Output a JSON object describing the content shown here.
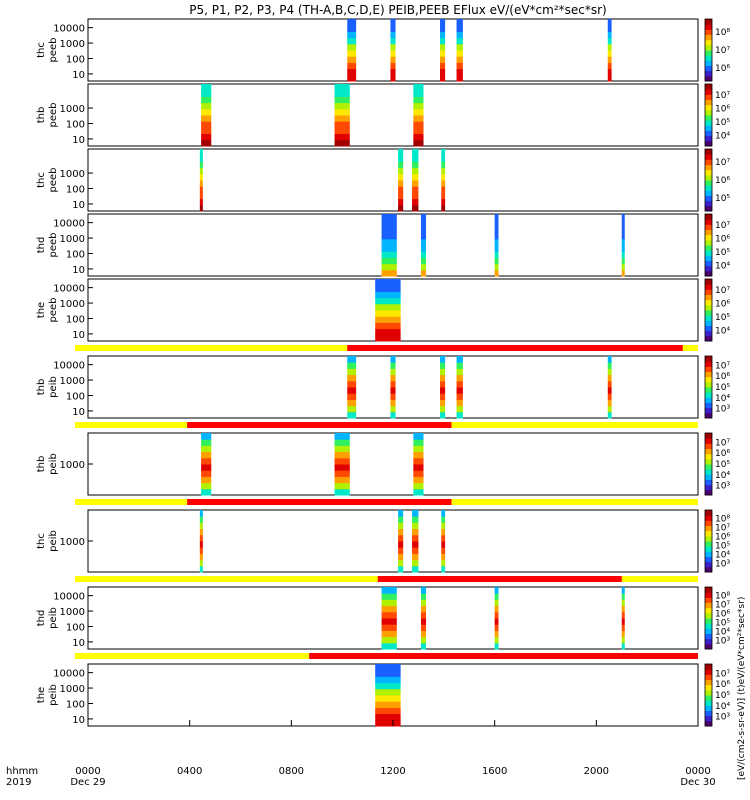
{
  "chart_data": {
    "type": "heatmap",
    "title": "P5, P1, P2, P3, P4 (TH-A,B,C,D,E) PEIB,PEEB EFlux eV/(eV*cm²*sec*sr)",
    "xlabel": "hhmm",
    "xlabel_year": "2019",
    "x_ticks": [
      "0000",
      "0400",
      "0800",
      "1200",
      "1600",
      "2000",
      "0000"
    ],
    "x_tick_hours": [
      0,
      4,
      8,
      12,
      16,
      20,
      24
    ],
    "x_date_labels": [
      "Dec 29",
      "Dec 30"
    ],
    "colorbar_label": "[eV/(cm2-s-sr-eV)] (t)eV/(eV*cm²*sec*sr)",
    "colorscale": [
      "#4b006e",
      "#3a20c8",
      "#1a60ff",
      "#00b4ff",
      "#00e8c8",
      "#30f060",
      "#b0f000",
      "#ffe800",
      "#ffa000",
      "#ff4800",
      "#e00000",
      "#a00000"
    ],
    "band_colors": {
      "yellow": "#ffff00",
      "red": "#ff0000"
    },
    "panels": [
      {
        "probe": "thc",
        "product": "peeb",
        "y_ticks": [
          "10",
          "100",
          "1000",
          "10000"
        ],
        "cb_ticks": [
          "10⁶",
          "10⁷",
          "10⁸"
        ],
        "bursts": [
          [
            10.2,
            10.55
          ],
          [
            11.9,
            12.1
          ],
          [
            13.85,
            14.05
          ],
          [
            14.5,
            14.75
          ],
          [
            20.45,
            20.6
          ]
        ],
        "profile": "hot"
      },
      {
        "probe": "thb",
        "product": "peeb",
        "y_ticks": [
          "10",
          "100",
          "1000"
        ],
        "cb_ticks": [
          "10⁴",
          "10⁵",
          "10⁶",
          "10⁷"
        ],
        "bursts": [
          [
            4.45,
            4.85
          ],
          [
            9.7,
            10.3
          ],
          [
            12.8,
            13.2
          ]
        ],
        "profile": "warm"
      },
      {
        "probe": "thc",
        "product": "peeb",
        "y_ticks": [
          "10",
          "100",
          "1000"
        ],
        "cb_ticks": [
          "10⁵",
          "10⁶",
          "10⁷"
        ],
        "bursts": [
          [
            4.4,
            4.5
          ],
          [
            12.2,
            12.4
          ],
          [
            12.75,
            13.0
          ],
          [
            13.9,
            14.05
          ]
        ],
        "profile": "warm"
      },
      {
        "probe": "thd",
        "product": "peeb",
        "y_ticks": [
          "10",
          "100",
          "1000",
          "10000"
        ],
        "cb_ticks": [
          "10⁴",
          "10⁵",
          "10⁶",
          "10⁷"
        ],
        "bursts": [
          [
            11.55,
            12.15
          ],
          [
            13.1,
            13.3
          ],
          [
            16.0,
            16.15
          ],
          [
            21.0,
            21.1
          ]
        ],
        "profile": "cool"
      },
      {
        "probe": "the",
        "product": "peeb",
        "y_ticks": [
          "10",
          "100",
          "1000",
          "10000"
        ],
        "cb_ticks": [
          "10⁴",
          "10⁵",
          "10⁶",
          "10⁷"
        ],
        "bursts": [
          [
            11.3,
            12.3
          ]
        ],
        "profile": "hot"
      },
      {
        "probe": "thb",
        "product": "peib",
        "y_ticks": [
          "10",
          "100",
          "1000",
          "10000"
        ],
        "cb_ticks": [
          "10³",
          "10⁴",
          "10⁵",
          "10⁶",
          "10⁷"
        ],
        "bursts": [
          [
            10.2,
            10.55
          ],
          [
            11.9,
            12.1
          ],
          [
            13.85,
            14.05
          ],
          [
            14.5,
            14.75
          ],
          [
            20.45,
            20.6
          ]
        ],
        "profile": "ion"
      },
      {
        "probe": "thb",
        "product": "peib",
        "y_ticks": [
          "1000"
        ],
        "cb_ticks": [
          "10³",
          "10⁴",
          "10⁵",
          "10⁶",
          "10⁷"
        ],
        "bursts": [
          [
            4.45,
            4.85
          ],
          [
            9.7,
            10.3
          ],
          [
            12.8,
            13.2
          ]
        ],
        "profile": "ion"
      },
      {
        "probe": "thc",
        "product": "peib",
        "y_ticks": [
          "1000"
        ],
        "cb_ticks": [
          "10³",
          "10⁴",
          "10⁵",
          "10⁶",
          "10⁷",
          "10⁸"
        ],
        "bursts": [
          [
            4.4,
            4.5
          ],
          [
            12.2,
            12.4
          ],
          [
            12.75,
            13.0
          ],
          [
            13.9,
            14.05
          ]
        ],
        "profile": "ion"
      },
      {
        "probe": "thd",
        "product": "peib",
        "y_ticks": [
          "10",
          "100",
          "1000",
          "10000"
        ],
        "cb_ticks": [
          "10³",
          "10⁴",
          "10⁵",
          "10⁶",
          "10⁷",
          "10⁸"
        ],
        "bursts": [
          [
            11.55,
            12.15
          ],
          [
            13.1,
            13.3
          ],
          [
            16.0,
            16.15
          ],
          [
            21.0,
            21.1
          ]
        ],
        "profile": "ion"
      },
      {
        "probe": "the",
        "product": "peib",
        "y_ticks": [
          "10",
          "100",
          "1000",
          "10000"
        ],
        "cb_ticks": [
          "10³",
          "10⁴",
          "10⁵",
          "10⁶",
          "10⁷"
        ],
        "bursts": [
          [
            11.3,
            12.3
          ]
        ],
        "profile": "hot"
      }
    ],
    "mode_bars": [
      {
        "after_panel": 4,
        "red": [
          [
            10.2,
            23.4
          ]
        ]
      },
      {
        "after_panel": 5,
        "red": [
          [
            3.9,
            14.3
          ]
        ]
      },
      {
        "after_panel": 6,
        "red": [
          [
            3.9,
            14.3
          ]
        ]
      },
      {
        "after_panel": 7,
        "red": [
          [
            11.4,
            21.0
          ]
        ]
      },
      {
        "after_panel": 8,
        "red": [
          [
            8.7,
            24.0
          ]
        ]
      }
    ]
  }
}
